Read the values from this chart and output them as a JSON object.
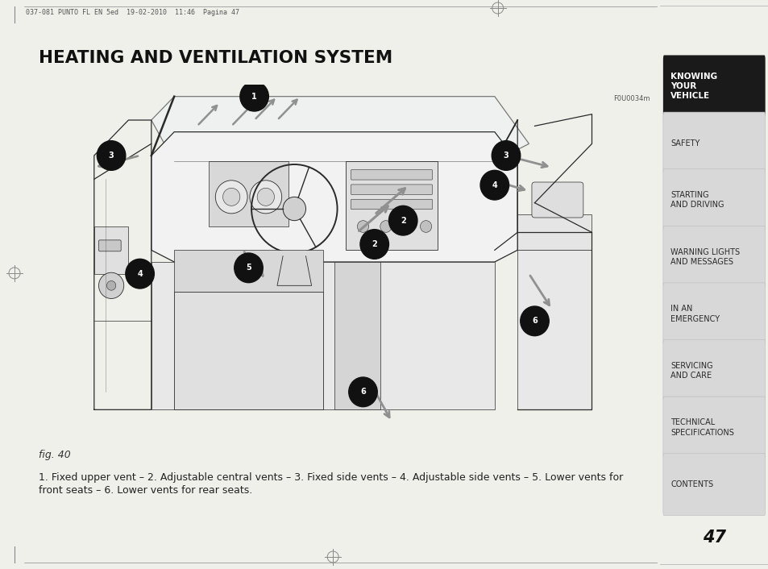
{
  "page_bg": "#f0f0eb",
  "content_bg": "#ffffff",
  "sidebar_bg": "#c8c8c8",
  "sidebar_active_bg": "#1a1a1a",
  "sidebar_active_text": "#ffffff",
  "sidebar_inactive_bg": "#d8d8d8",
  "sidebar_text": "#2a2a2a",
  "title": "HEATING AND VENTILATION SYSTEM",
  "title_color": "#111111",
  "header_text": "037-081 PUNTO FL EN 5ed  19-02-2010  11:46  Pagina 47",
  "figure_label": "fig. 40",
  "figure_code": "F0U0034m",
  "caption_line1": "1. Fixed upper vent – 2. Adjustable central vents – 3. Fixed side vents – 4. Adjustable side vents – 5. Lower vents for",
  "caption_line2": "front seats – 6. Lower vents for rear seats.",
  "page_number": "47",
  "sidebar_items": [
    {
      "text": "KNOWING\nYOUR\nVEHICLE",
      "active": true
    },
    {
      "text": "SAFETY",
      "active": false
    },
    {
      "text": "STARTING\nAND DRIVING",
      "active": false
    },
    {
      "text": "WARNING LIGHTS\nAND MESSAGES",
      "active": false
    },
    {
      "text": "IN AN\nEMERGENCY",
      "active": false
    },
    {
      "text": "SERVICING\nAND CARE",
      "active": false
    },
    {
      "text": "TECHNICAL\nSPECIFICATIONS",
      "active": false
    },
    {
      "text": "CONTENTS",
      "active": false
    }
  ]
}
